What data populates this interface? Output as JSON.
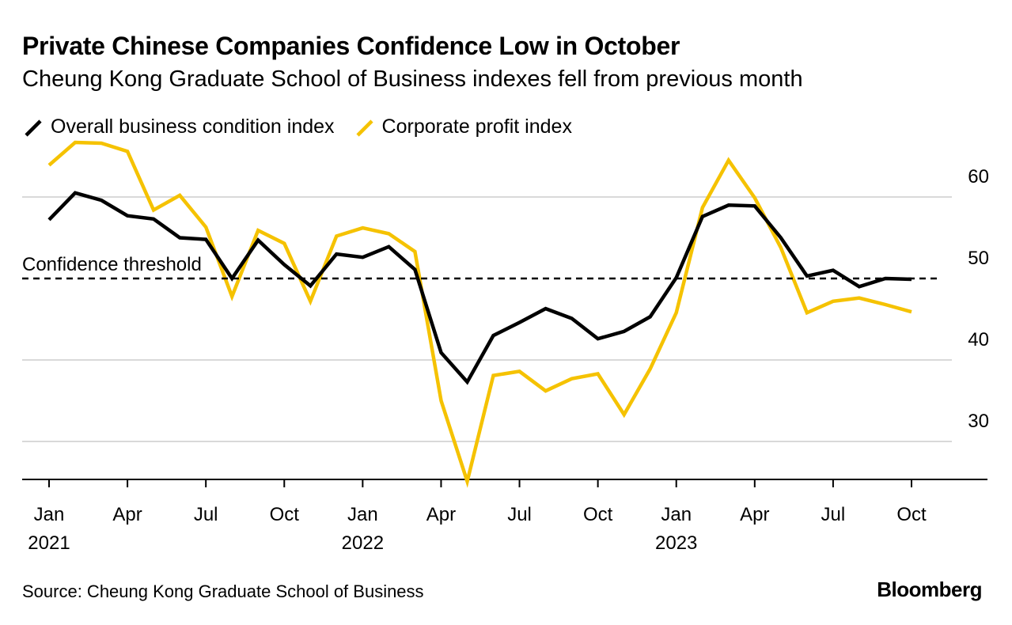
{
  "chart_data": {
    "type": "line",
    "title": "Private Chinese Companies Confidence Low in October",
    "subtitle": "Cheung Kong Graduate School of Business indexes fell from previous month",
    "x": [
      "2021-01",
      "2021-02",
      "2021-03",
      "2021-04",
      "2021-05",
      "2021-06",
      "2021-07",
      "2021-08",
      "2021-09",
      "2021-10",
      "2021-11",
      "2021-12",
      "2022-01",
      "2022-02",
      "2022-03",
      "2022-04",
      "2022-05",
      "2022-06",
      "2022-07",
      "2022-08",
      "2022-09",
      "2022-10",
      "2022-11",
      "2022-12",
      "2023-01",
      "2023-02",
      "2023-03",
      "2023-04",
      "2023-05",
      "2023-06",
      "2023-07",
      "2023-08",
      "2023-09",
      "2023-10"
    ],
    "series": [
      {
        "name": "Overall business condition index",
        "color": "#000000",
        "values": [
          57.2,
          60.5,
          59.6,
          57.7,
          57.3,
          55.0,
          54.8,
          50.0,
          54.7,
          51.7,
          49.1,
          53.0,
          52.6,
          53.9,
          51.1,
          40.9,
          37.3,
          43.0,
          44.6,
          46.3,
          45.1,
          42.6,
          43.5,
          45.3,
          50.1,
          57.6,
          59.0,
          58.9,
          55.0,
          50.3,
          51.0,
          49.0,
          50.0,
          49.9
        ]
      },
      {
        "name": "Corporate profit index",
        "color": "#f5c200",
        "values": [
          63.9,
          66.7,
          66.6,
          65.6,
          58.4,
          60.2,
          56.3,
          47.8,
          55.9,
          54.3,
          47.2,
          55.2,
          56.2,
          55.5,
          53.3,
          35.0,
          25.1,
          38.1,
          38.6,
          36.2,
          37.7,
          38.3,
          33.3,
          38.9,
          45.8,
          58.7,
          64.5,
          59.9,
          53.8,
          45.8,
          47.2,
          47.6,
          46.8,
          45.9
        ]
      }
    ],
    "reference_line": {
      "value": 50,
      "label": "Confidence threshold",
      "style": "dashed"
    },
    "ylim": [
      24,
      70
    ],
    "yticks": [
      30,
      40,
      50,
      60
    ],
    "ytick_labels": [
      "30",
      "40",
      "50",
      "60"
    ],
    "xticks": [
      {
        "index": 0,
        "month": "Jan",
        "year": "2021"
      },
      {
        "index": 3,
        "month": "Apr",
        "year": ""
      },
      {
        "index": 6,
        "month": "Jul",
        "year": ""
      },
      {
        "index": 9,
        "month": "Oct",
        "year": ""
      },
      {
        "index": 12,
        "month": "Jan",
        "year": "2022"
      },
      {
        "index": 15,
        "month": "Apr",
        "year": ""
      },
      {
        "index": 18,
        "month": "Jul",
        "year": ""
      },
      {
        "index": 21,
        "month": "Oct",
        "year": ""
      },
      {
        "index": 24,
        "month": "Jan",
        "year": "2023"
      },
      {
        "index": 27,
        "month": "Apr",
        "year": ""
      },
      {
        "index": 30,
        "month": "Jul",
        "year": ""
      },
      {
        "index": 33,
        "month": "Oct",
        "year": ""
      }
    ],
    "xlabel": "",
    "ylabel": "",
    "grid": true,
    "legend_position": "top-left"
  },
  "footer": {
    "source": "Source: Cheung Kong Graduate School of Business",
    "brand": "Bloomberg"
  }
}
